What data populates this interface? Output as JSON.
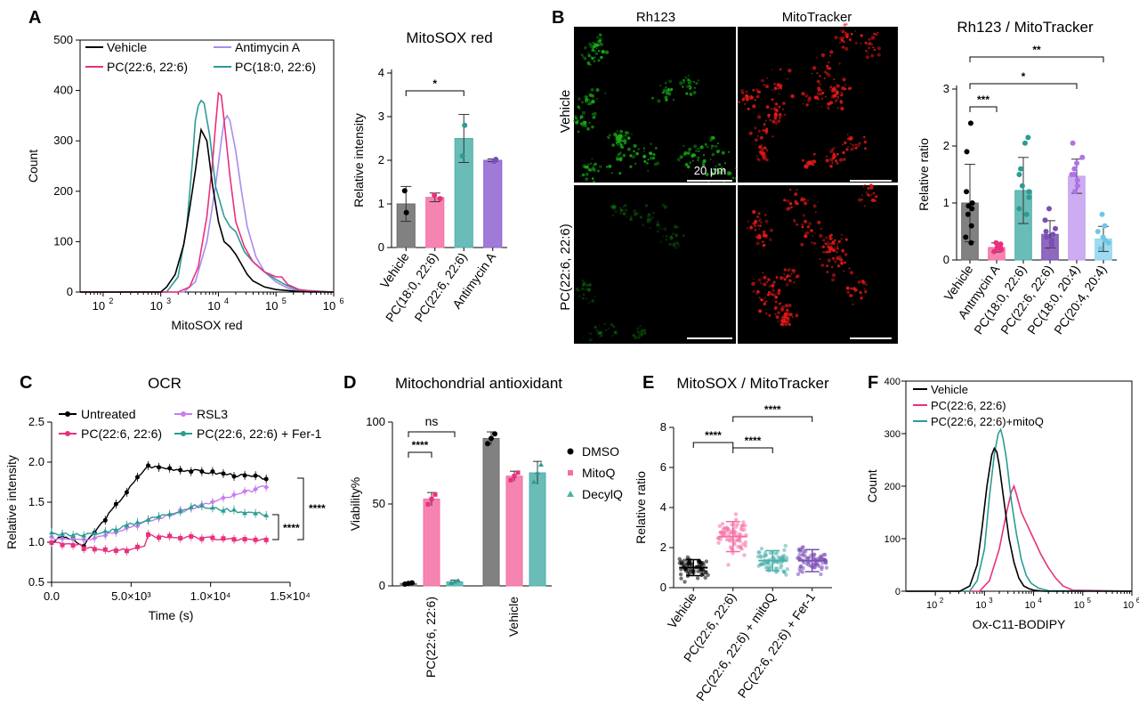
{
  "colors": {
    "vehicle": "#000000",
    "pc226": "#e8307e",
    "pc180": "#2b9c94",
    "antimycin": "#a98cf0",
    "rsl3": "#c77df0",
    "purple": "#7a4fb4",
    "lightblue": "#6ec7e8",
    "grey": "#6b6b6b",
    "pink": "#f56ea4",
    "teal": "#4fb0ab",
    "green_ch": "#18b018",
    "red_ch": "#e01818"
  },
  "panels": {
    "A": "A",
    "B": "B",
    "C": "C",
    "D": "D",
    "E": "E",
    "F": "F"
  },
  "chart_data": [
    {
      "id": "A_hist",
      "type": "line",
      "ylabel": "Count",
      "xlabel": "MitoSOX red",
      "ylim": [
        0,
        500
      ],
      "xscale": "log",
      "xlim_log10": [
        1.6,
        6
      ],
      "yticks": [
        "0",
        "100",
        "200",
        "300",
        "400",
        "500"
      ],
      "xticks": [
        "10",
        "10",
        "10",
        "10",
        "10"
      ],
      "xtick_exp": [
        "2",
        "3",
        "4",
        "5",
        "6"
      ],
      "series": [
        {
          "name": "Vehicle",
          "color": "#000000",
          "x_log10": [
            1.6,
            3.0,
            3.1,
            3.25,
            3.4,
            3.5,
            3.6,
            3.65,
            3.7,
            3.8,
            3.9,
            4.0,
            4.1,
            4.2,
            4.3,
            4.4,
            4.5,
            4.6,
            4.8,
            5.0,
            5.2,
            5.4,
            5.6,
            6.0
          ],
          "y": [
            0,
            0,
            10,
            35,
            95,
            165,
            240,
            285,
            322,
            300,
            210,
            140,
            100,
            90,
            75,
            55,
            35,
            22,
            10,
            5,
            3,
            1,
            0,
            0
          ]
        },
        {
          "name": "PC(22:6, 22:6)",
          "color": "#e8307e",
          "x_log10": [
            1.6,
            3.3,
            3.5,
            3.65,
            3.8,
            3.9,
            3.95,
            4.0,
            4.05,
            4.1,
            4.2,
            4.3,
            4.45,
            4.6,
            4.8,
            5.0,
            5.1,
            5.2,
            5.4,
            5.6,
            6.0
          ],
          "y": [
            0,
            0,
            10,
            50,
            150,
            260,
            330,
            395,
            390,
            340,
            230,
            140,
            90,
            60,
            40,
            30,
            30,
            15,
            5,
            2,
            0
          ]
        },
        {
          "name": "PC(18:0, 22:6)",
          "color": "#2b9c94",
          "x_log10": [
            1.6,
            3.1,
            3.3,
            3.45,
            3.55,
            3.6,
            3.65,
            3.7,
            3.75,
            3.85,
            3.95,
            4.1,
            4.2,
            4.3,
            4.45,
            4.6,
            4.8,
            5.0,
            5.2,
            5.4,
            6.0
          ],
          "y": [
            0,
            0,
            30,
            130,
            260,
            340,
            370,
            380,
            375,
            310,
            210,
            150,
            130,
            120,
            80,
            60,
            40,
            25,
            12,
            4,
            0
          ]
        },
        {
          "name": "Antimycin A",
          "color": "#a98cf0",
          "x_log10": [
            1.6,
            3.4,
            3.6,
            3.8,
            3.95,
            4.05,
            4.1,
            4.15,
            4.2,
            4.3,
            4.4,
            4.5,
            4.65,
            4.8,
            5.0,
            5.2,
            5.4,
            6.0
          ],
          "y": [
            0,
            0,
            20,
            100,
            210,
            300,
            340,
            350,
            340,
            280,
            200,
            130,
            70,
            40,
            20,
            8,
            2,
            0
          ]
        }
      ]
    },
    {
      "id": "A_bar",
      "type": "bar",
      "title": "MitoSOX red",
      "ylabel": "Relative intensity",
      "ylim": [
        0,
        4
      ],
      "yticks": [
        "0",
        "1",
        "2",
        "3",
        "4"
      ],
      "categories": [
        "Vehicle",
        "PC(18:0, 22:6)",
        "PC(22:6, 22:6)",
        "Antimycin A"
      ],
      "values": [
        1.0,
        1.15,
        2.5,
        2.0
      ],
      "errors": [
        0.4,
        0.1,
        0.55,
        0.03
      ],
      "points": [
        [
          0.8,
          1.3
        ],
        [
          1.12,
          1.2
        ],
        [
          2.1,
          2.8
        ],
        [
          1.98,
          2.02
        ]
      ],
      "colors": [
        "#6b6b6b",
        "#f56ea4",
        "#4fb0ab",
        "#8f63d0"
      ],
      "significance": [
        {
          "from": 0,
          "to": 2,
          "label": "*"
        }
      ]
    },
    {
      "id": "B_bar",
      "type": "bar",
      "title": "Rh123 / MitoTracker",
      "ylabel": "Relative ratio",
      "ylim": [
        0,
        3
      ],
      "yticks": [
        "0",
        "1",
        "2",
        "3"
      ],
      "categories": [
        "Vehicle",
        "Antmycin A",
        "PC(18:0, 22:6)",
        "PC(22:6, 22:6)",
        "PC(18:0, 20:4)",
        "PC(20:4, 20:4)"
      ],
      "values": [
        1.0,
        0.22,
        1.22,
        0.45,
        1.47,
        0.37
      ],
      "errors": [
        0.68,
        0.08,
        0.58,
        0.24,
        0.3,
        0.22
      ],
      "colors": [
        "#6b6b6b",
        "#f56ea4",
        "#4fb0ab",
        "#7a4fb4",
        "#c49ef0",
        "#8fd4ee"
      ],
      "points": [
        [
          2.4,
          1.9,
          1.0,
          0.9,
          0.8,
          0.6,
          0.4,
          0.3,
          1.2,
          0.95
        ],
        [
          0.3,
          0.25,
          0.2,
          0.15,
          0.18,
          0.28,
          0.22,
          0.2
        ],
        [
          2.15,
          2.05,
          1.5,
          1.3,
          1.1,
          0.9,
          0.8,
          1.2,
          1.6
        ],
        [
          0.9,
          0.7,
          0.55,
          0.45,
          0.35,
          0.3,
          0.4,
          0.5,
          0.25
        ],
        [
          2.05,
          1.8,
          1.7,
          1.5,
          1.4,
          1.3,
          1.2,
          1.6,
          1.5
        ],
        [
          0.8,
          0.6,
          0.5,
          0.35,
          0.3,
          0.2,
          0.4
        ]
      ],
      "significance": [
        {
          "from": 0,
          "to": 5,
          "label": "**"
        },
        {
          "from": 0,
          "to": 4,
          "label": "*"
        },
        {
          "from": 0,
          "to": 1,
          "label": "***"
        }
      ]
    },
    {
      "id": "C_line",
      "type": "line",
      "title": "OCR",
      "ylabel": "Relative intensity",
      "xlabel": "Time (s)",
      "xlim": [
        0,
        15000
      ],
      "ylim": [
        0.5,
        2.5
      ],
      "xticks": [
        "0.0",
        "5.0×10³",
        "1.0×10⁴",
        "1.5×10⁴"
      ],
      "yticks": [
        "0.5",
        "1.0",
        "1.5",
        "2.0",
        "2.5"
      ],
      "series": [
        {
          "name": "Untreated",
          "color": "#000000",
          "marker": "circle"
        },
        {
          "name": "PC(22:6, 22:6)",
          "color": "#e8307e",
          "marker": "square"
        },
        {
          "name": "RSL3",
          "color": "#c77df0",
          "marker": "diamond"
        },
        {
          "name": "PC(22:6, 22:6) + Fer-1",
          "color": "#2b9c94",
          "marker": "triangle"
        }
      ],
      "significance": [
        "****",
        "****"
      ]
    },
    {
      "id": "D_bar",
      "type": "bar",
      "title": "Mitochondrial antioxidant",
      "ylabel": "Viability%",
      "ylim": [
        0,
        100
      ],
      "yticks": [
        "0",
        "50",
        "100"
      ],
      "categories": [
        "PC(22:6, 22:6)",
        "Vehicle"
      ],
      "series": [
        {
          "name": "DMSO",
          "color": "#6b6b6b",
          "values": [
            1.5,
            90
          ],
          "errors": [
            0.5,
            4
          ]
        },
        {
          "name": "MitoQ",
          "color": "#f56ea4",
          "values": [
            53,
            67
          ],
          "errors": [
            4,
            3
          ]
        },
        {
          "name": "DecylQ",
          "color": "#4fb0ab",
          "values": [
            2.5,
            69
          ],
          "errors": [
            1,
            7
          ]
        }
      ],
      "significance": [
        {
          "label": "****"
        },
        {
          "label": "ns"
        }
      ]
    },
    {
      "id": "E_scatter",
      "type": "scatter",
      "title": "MitoSOX / MitoTracker",
      "ylabel": "Relative ratio",
      "ylim": [
        0,
        8
      ],
      "yticks": [
        "0",
        "2",
        "4",
        "6",
        "8"
      ],
      "categories": [
        "Vehicle",
        "PC(22:6, 22:6)",
        "PC(22:6, 22:6) + mitoQ",
        "PC(22:6, 22:6) + Fer-1"
      ],
      "means": [
        1.0,
        2.55,
        1.35,
        1.35
      ],
      "sd": [
        0.4,
        0.75,
        0.5,
        0.55
      ],
      "colors": [
        "#000000",
        "#f56ea4",
        "#4fb0ab",
        "#7a4fb4"
      ],
      "significance": [
        {
          "from": 0,
          "to": 1,
          "label": "****"
        },
        {
          "from": 1,
          "to": 2,
          "label": "****"
        },
        {
          "from": 1,
          "to": 3,
          "label": "****"
        }
      ]
    },
    {
      "id": "F_hist",
      "type": "line",
      "ylabel": "Count",
      "xlabel": "Ox-C11-BODIPY",
      "ylim": [
        0,
        400
      ],
      "xscale": "log",
      "xlim_log10": [
        1.4,
        6
      ],
      "yticks": [
        "0",
        "100",
        "200",
        "300",
        "400"
      ],
      "xtick_exp": [
        "2",
        "3",
        "4",
        "5",
        "6"
      ],
      "series": [
        {
          "name": "Vehicle",
          "color": "#000000",
          "x_log10": [
            1.4,
            2.5,
            2.7,
            2.85,
            2.95,
            3.05,
            3.15,
            3.2,
            3.25,
            3.3,
            3.4,
            3.5,
            3.6,
            3.7,
            3.8,
            3.9,
            4.0,
            4.2,
            6.0
          ],
          "y": [
            0,
            0,
            10,
            50,
            120,
            200,
            260,
            272,
            265,
            240,
            170,
            100,
            55,
            25,
            10,
            5,
            2,
            0,
            0
          ]
        },
        {
          "name": "PC(22:6, 22:6)",
          "color": "#e8307e",
          "x_log10": [
            1.4,
            2.9,
            3.1,
            3.3,
            3.45,
            3.55,
            3.6,
            3.65,
            3.75,
            3.85,
            3.95,
            4.05,
            4.15,
            4.3,
            4.45,
            4.6,
            4.8,
            6.0
          ],
          "y": [
            0,
            0,
            20,
            80,
            150,
            190,
            200,
            185,
            150,
            130,
            110,
            90,
            70,
            45,
            25,
            10,
            2,
            0
          ]
        },
        {
          "name": "PC(22:6, 22:6)+mitoQ",
          "color": "#2b9c94",
          "x_log10": [
            1.4,
            2.7,
            2.85,
            3.0,
            3.1,
            3.2,
            3.28,
            3.33,
            3.38,
            3.45,
            3.55,
            3.65,
            3.75,
            3.85,
            3.95,
            4.1,
            4.3,
            6.0
          ],
          "y": [
            0,
            0,
            20,
            80,
            180,
            260,
            300,
            308,
            290,
            250,
            170,
            110,
            60,
            30,
            15,
            6,
            1,
            0
          ]
        }
      ]
    }
  ],
  "images": {
    "col1": "Rh123",
    "col2": "MitoTracker",
    "row1": "Vehicle",
    "row2": "PC(22:6, 22:6)",
    "scalebar": "20 μm"
  }
}
